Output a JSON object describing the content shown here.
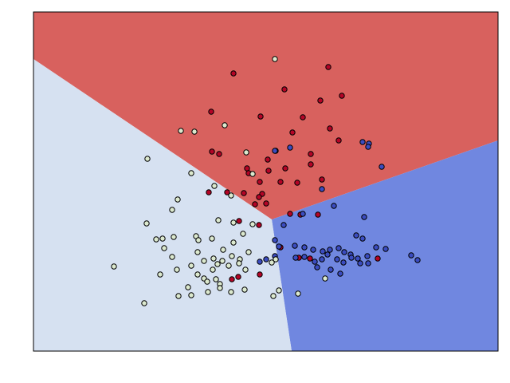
{
  "chart_data": {
    "type": "scatter",
    "title": "",
    "xlabel": "",
    "ylabel": "",
    "grid": false,
    "axes_ticks_visible": false,
    "colors": {
      "region_red": "#d8615e",
      "region_blue": "#7087e0",
      "region_light": "#d6e1f1",
      "point_red": "#b40426",
      "point_blue": "#3b4cc0",
      "point_light": "#dce9ce",
      "point_edge": "#000000"
    },
    "regions": [
      {
        "class": "red",
        "polygon": [
          [
            42,
            15
          ],
          [
            625,
            15
          ],
          [
            625,
            176
          ],
          [
            341,
            275
          ],
          [
            42,
            74
          ]
        ]
      },
      {
        "class": "blue",
        "polygon": [
          [
            341,
            275
          ],
          [
            625,
            176
          ],
          [
            625,
            440
          ],
          [
            366,
            440
          ]
        ]
      },
      {
        "class": "light",
        "polygon": [
          [
            42,
            74
          ],
          [
            341,
            275
          ],
          [
            366,
            440
          ],
          [
            42,
            440
          ]
        ]
      }
    ],
    "series": [
      {
        "class": "red",
        "points": [
          [
            293,
            92
          ],
          [
            412,
            84
          ],
          [
            357,
            112
          ],
          [
            429,
            120
          ],
          [
            402,
            126
          ],
          [
            265,
            140
          ],
          [
            327,
            146
          ],
          [
            380,
            147
          ],
          [
            414,
            161
          ],
          [
            367,
            166
          ],
          [
            266,
            190
          ],
          [
            275,
            193
          ],
          [
            346,
            189
          ],
          [
            425,
            176
          ],
          [
            390,
            193
          ],
          [
            336,
            200
          ],
          [
            310,
            211
          ],
          [
            358,
            211
          ],
          [
            337,
            214
          ],
          [
            390,
            206
          ],
          [
            312,
            217
          ],
          [
            326,
            228
          ],
          [
            352,
            228
          ],
          [
            373,
            229
          ],
          [
            404,
            225
          ],
          [
            262,
            241
          ],
          [
            285,
            241
          ],
          [
            329,
            243
          ],
          [
            325,
            247
          ],
          [
            306,
            242
          ],
          [
            320,
            256
          ],
          [
            334,
            255
          ],
          [
            364,
            268
          ],
          [
            377,
            269
          ],
          [
            399,
            269
          ],
          [
            300,
            277
          ],
          [
            325,
            282
          ],
          [
            352,
            310
          ],
          [
            375,
            323
          ],
          [
            389,
            324
          ],
          [
            474,
            324
          ],
          [
            326,
            344
          ],
          [
            299,
            347
          ],
          [
            291,
            350
          ]
        ]
      },
      {
        "class": "blue",
        "points": [
          [
            345,
            189
          ],
          [
            364,
            185
          ],
          [
            455,
            178
          ],
          [
            463,
            180
          ],
          [
            462,
            184
          ],
          [
            479,
            209
          ],
          [
            404,
            237
          ],
          [
            419,
            258
          ],
          [
            457,
            272
          ],
          [
            356,
            282
          ],
          [
            380,
            268
          ],
          [
            447,
            295
          ],
          [
            455,
            299
          ],
          [
            345,
            301
          ],
          [
            350,
            309
          ],
          [
            370,
            308
          ],
          [
            382,
            310
          ],
          [
            393,
            313
          ],
          [
            405,
            315
          ],
          [
            414,
            313
          ],
          [
            425,
            311
          ],
          [
            432,
            316
          ],
          [
            440,
            319
          ],
          [
            449,
            324
          ],
          [
            461,
            321
          ],
          [
            472,
            310
          ],
          [
            484,
            312
          ],
          [
            371,
            323
          ],
          [
            382,
            322
          ],
          [
            395,
            328
          ],
          [
            404,
            325
          ],
          [
            411,
            319
          ],
          [
            423,
            325
          ],
          [
            431,
            329
          ],
          [
            441,
            323
          ],
          [
            452,
            330
          ],
          [
            462,
            330
          ],
          [
            345,
            321
          ],
          [
            334,
            325
          ],
          [
            326,
            328
          ],
          [
            398,
            335
          ],
          [
            427,
            343
          ],
          [
            415,
            338
          ],
          [
            516,
            320
          ],
          [
            524,
            326
          ]
        ]
      },
      {
        "class": "light",
        "points": [
          [
            345,
            74
          ],
          [
            227,
            164
          ],
          [
            244,
            165
          ],
          [
            282,
            157
          ],
          [
            185,
            199
          ],
          [
            240,
            217
          ],
          [
            269,
            233
          ],
          [
            290,
            245
          ],
          [
            223,
            250
          ],
          [
            216,
            263
          ],
          [
            274,
            276
          ],
          [
            293,
            279
          ],
          [
            317,
            281
          ],
          [
            184,
            280
          ],
          [
            196,
            300
          ],
          [
            204,
            299
          ],
          [
            246,
            296
          ],
          [
            218,
            297
          ],
          [
            249,
            301
          ],
          [
            206,
            311
          ],
          [
            266,
            299
          ],
          [
            305,
            293
          ],
          [
            293,
            304
          ],
          [
            216,
            322
          ],
          [
            248,
            316
          ],
          [
            280,
            313
          ],
          [
            291,
            321
          ],
          [
            312,
            316
          ],
          [
            301,
            325
          ],
          [
            143,
            334
          ],
          [
            201,
            344
          ],
          [
            222,
            338
          ],
          [
            240,
            333
          ],
          [
            256,
            327
          ],
          [
            268,
            324
          ],
          [
            273,
            331
          ],
          [
            279,
            327
          ],
          [
            287,
            333
          ],
          [
            300,
            330
          ],
          [
            308,
            338
          ],
          [
            248,
            344
          ],
          [
            256,
            349
          ],
          [
            260,
            353
          ],
          [
            267,
            338
          ],
          [
            271,
            350
          ],
          [
            276,
            356
          ],
          [
            236,
            360
          ],
          [
            224,
            371
          ],
          [
            240,
            370
          ],
          [
            261,
            366
          ],
          [
            276,
            361
          ],
          [
            290,
            366
          ],
          [
            307,
            363
          ],
          [
            341,
            329
          ],
          [
            346,
            325
          ],
          [
            350,
            364
          ],
          [
            343,
            371
          ],
          [
            374,
            368
          ],
          [
            181,
            380
          ],
          [
            309,
            191
          ],
          [
            317,
            218
          ],
          [
            408,
            349
          ]
        ]
      }
    ]
  }
}
